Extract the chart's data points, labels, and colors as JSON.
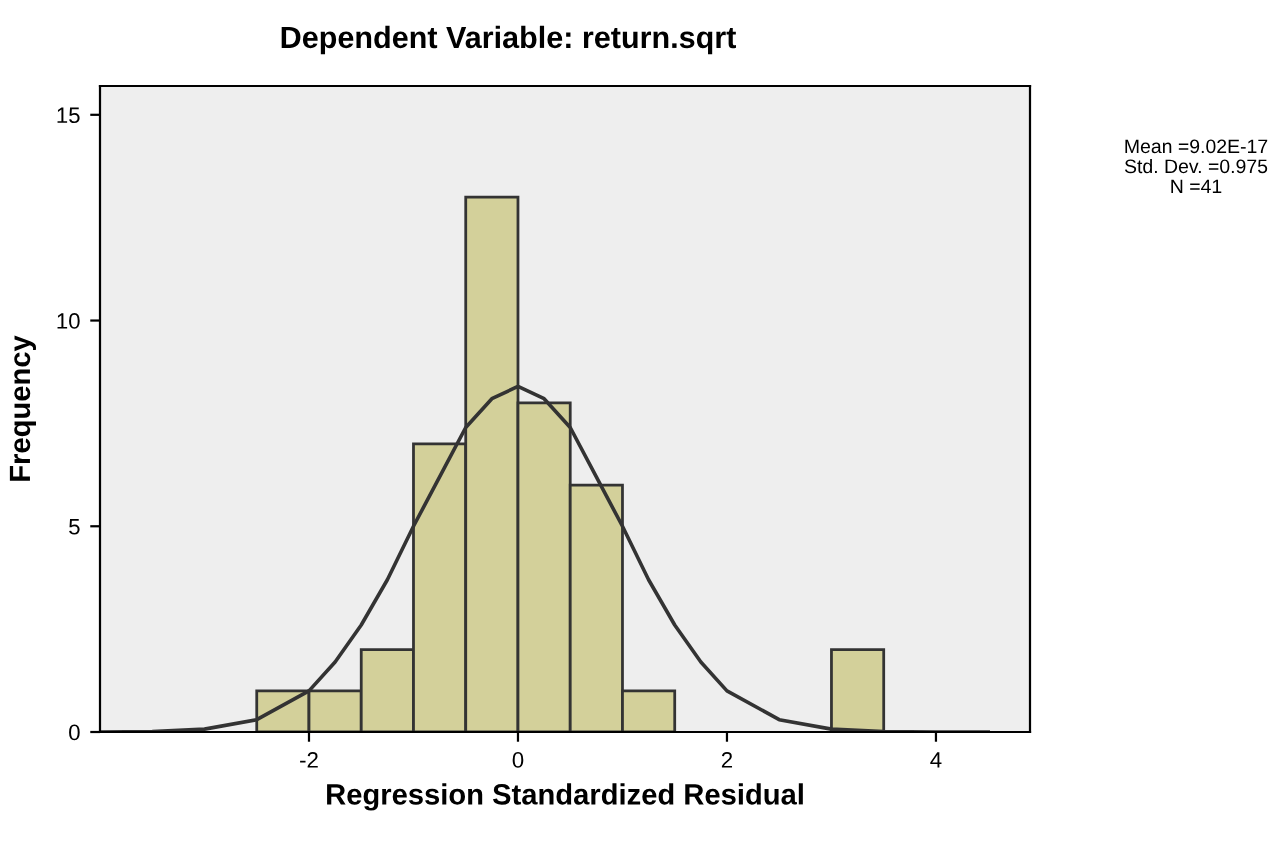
{
  "chart_data": {
    "type": "histogram",
    "title": "Dependent Variable: return.sqrt",
    "xlabel": "Regression Standardized Residual",
    "ylabel": "Frequency",
    "bins": [
      -2.5,
      -2,
      -1.5,
      -1,
      -0.5,
      0,
      0.5,
      1,
      1.5,
      2,
      2.5,
      3,
      3.5
    ],
    "values": [
      1,
      1,
      2,
      7,
      13,
      8,
      6,
      1,
      0,
      0,
      0,
      2
    ],
    "color": "#d3d09a",
    "series": [
      {
        "type": "line",
        "color": "#333333",
        "x": [
          -4.0,
          -3.5,
          -3.0,
          -2.5,
          -2.0,
          -1.75,
          -1.5,
          -1.25,
          -1.0,
          -0.75,
          -0.5,
          -0.25,
          0,
          0.25,
          0.5,
          0.75,
          1.0,
          1.25,
          1.5,
          1.75,
          2.0,
          2.5,
          3.0,
          3.5,
          4.0,
          4.5
        ],
        "values": [
          0.0,
          0.01,
          0.07,
          0.3,
          1.0,
          1.7,
          2.6,
          3.7,
          5.0,
          6.2,
          7.4,
          8.1,
          8.4,
          8.1,
          7.4,
          6.2,
          5.0,
          3.7,
          2.6,
          1.7,
          1.0,
          0.3,
          0.07,
          0.01,
          0.0,
          0.0
        ]
      }
    ],
    "xlim": [
      -4.0,
      4.9
    ],
    "ylim": [
      0,
      15.7
    ],
    "xticks": [
      -2,
      0,
      2,
      4
    ],
    "yticks": [
      0,
      5,
      10,
      15
    ],
    "grid": false,
    "legend": false,
    "annotations": [
      "Mean =9.02E-17",
      "Std. Dev. =0.975",
      "N =41"
    ]
  }
}
